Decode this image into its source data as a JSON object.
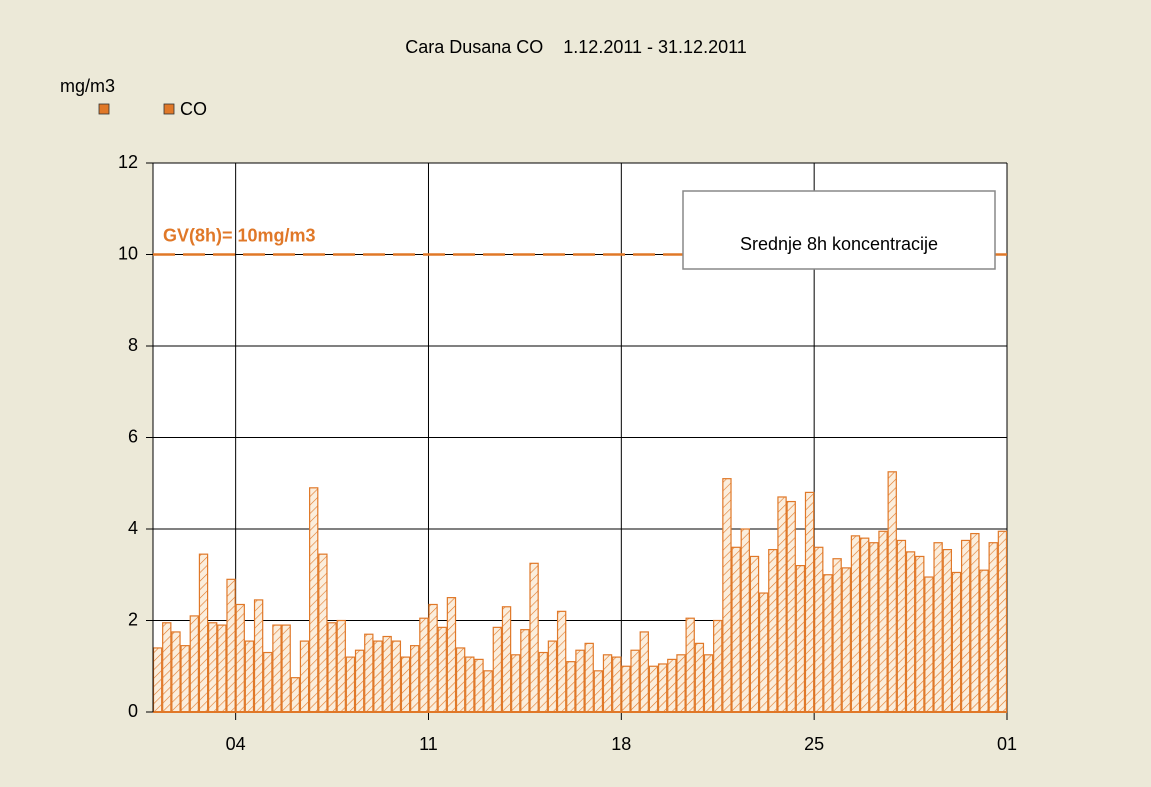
{
  "chart_data": {
    "type": "bar",
    "title": "Cara Dusana CO    1.12.2011 - 31.12.2011",
    "y_label": "mg/m3",
    "series": [
      {
        "name": "CO",
        "color": "#e07828",
        "values": [
          1.4,
          1.95,
          1.75,
          1.45,
          2.1,
          3.45,
          1.95,
          1.9,
          2.9,
          2.35,
          1.55,
          2.45,
          1.3,
          1.9,
          1.9,
          0.75,
          1.55,
          4.9,
          3.45,
          1.95,
          2.0,
          1.2,
          1.35,
          1.7,
          1.55,
          1.65,
          1.55,
          1.2,
          1.45,
          2.05,
          2.35,
          1.85,
          2.5,
          1.4,
          1.2,
          1.15,
          0.9,
          1.85,
          2.3,
          1.25,
          1.8,
          3.25,
          1.3,
          1.55,
          2.2,
          1.1,
          1.35,
          1.5,
          0.9,
          1.25,
          1.2,
          1.0,
          1.35,
          1.75,
          1.0,
          1.05,
          1.15,
          1.25,
          2.05,
          1.5,
          1.25,
          2.0,
          5.1,
          3.6,
          4.0,
          3.4,
          2.6,
          3.55,
          4.7,
          4.6,
          3.2,
          4.8,
          3.6,
          3.0,
          3.35,
          3.15,
          3.85,
          3.8,
          3.7,
          3.95,
          5.25,
          3.75,
          3.5,
          3.4,
          2.95,
          3.7,
          3.55,
          3.05,
          3.75,
          3.9,
          3.1,
          3.7,
          3.95
        ]
      }
    ],
    "x": [
      1,
      1.333,
      1.667,
      2,
      2.333,
      2.667,
      3,
      3.333,
      3.667,
      4,
      4.333,
      4.667,
      5,
      5.333,
      5.667,
      6,
      6.333,
      6.667,
      7,
      7.333,
      7.667,
      8,
      8.333,
      8.667,
      9,
      9.333,
      9.667,
      10,
      10.333,
      10.667,
      11,
      11.333,
      11.667,
      12,
      12.333,
      12.667,
      13,
      13.333,
      13.667,
      14,
      14.333,
      14.667,
      15,
      15.333,
      15.667,
      16,
      16.333,
      16.667,
      17,
      17.333,
      17.667,
      18,
      18.333,
      18.667,
      19,
      19.333,
      19.667,
      20,
      20.333,
      20.667,
      21,
      21.333,
      21.667,
      22,
      22.333,
      22.667,
      23,
      23.333,
      23.667,
      24,
      24.333,
      24.667,
      25,
      25.333,
      25.667,
      26,
      26.333,
      26.667,
      27,
      27.333,
      27.667,
      28,
      28.333,
      28.667,
      29,
      29.333,
      29.667,
      30,
      30.333,
      30.667,
      31,
      31.333,
      31.667
    ],
    "bar_width": 0.333,
    "xlim": [
      1,
      32
    ],
    "xticks": [
      {
        "value": 4,
        "label": "04"
      },
      11,
      18,
      25,
      {
        "value": 32,
        "label": "01"
      }
    ],
    "ylim": [
      0,
      12
    ],
    "yticks": [
      0,
      2,
      4,
      6,
      8,
      10,
      12
    ],
    "grid": true,
    "reference_lines": [
      {
        "value": 10,
        "label": "GV(8h)= 10mg/m3",
        "color": "#e07828"
      }
    ],
    "annotation": "Srednje 8h koncentracije"
  }
}
